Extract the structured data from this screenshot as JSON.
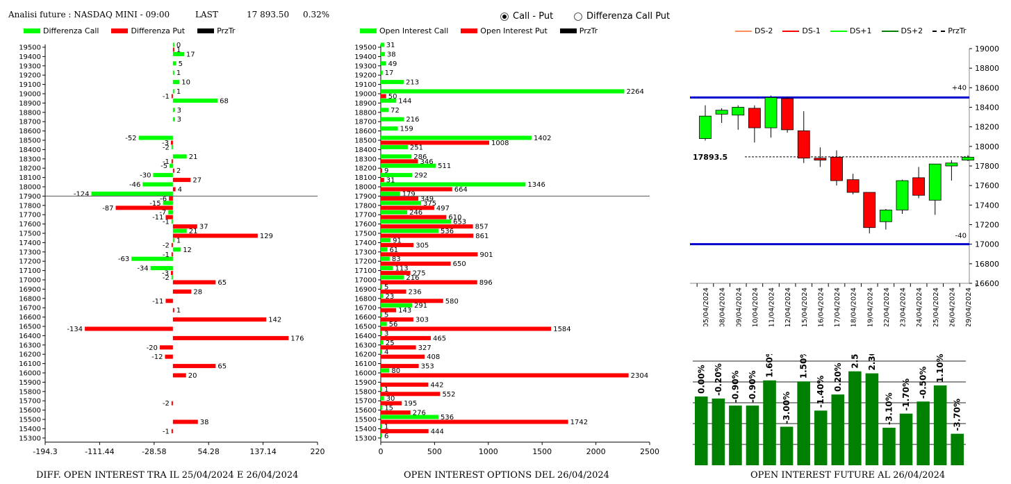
{
  "header": {
    "title": "Analisi future : NASDAQ MINI - 09:00",
    "last_label": "LAST",
    "last_value": "17 893.50",
    "change": "0.32%"
  },
  "radios": [
    {
      "label": "Call - Put",
      "selected": true
    },
    {
      "label": "Differenza Call Put",
      "selected": false
    }
  ],
  "legends": {
    "left": [
      {
        "label": "Differenza Call",
        "color": "#00ff00"
      },
      {
        "label": "Differenza Put",
        "color": "#ff0000"
      },
      {
        "label": "PrzTr",
        "color": "#000000"
      }
    ],
    "middle": [
      {
        "label": "Open Interest Call",
        "color": "#00ff00"
      },
      {
        "label": "Open Interest Put",
        "color": "#ff0000"
      },
      {
        "label": "PrzTr",
        "color": "#000000"
      }
    ],
    "right": [
      {
        "label": "DS-2",
        "color": "#ff8c5a",
        "style": "solid"
      },
      {
        "label": "DS-1",
        "color": "#ff0000",
        "style": "solid"
      },
      {
        "label": "DS+1",
        "color": "#00ff00",
        "style": "solid"
      },
      {
        "label": "DS+2",
        "color": "#008000",
        "style": "solid"
      },
      {
        "label": "PrzTr",
        "color": "#000000",
        "style": "dashed"
      }
    ]
  },
  "footers": {
    "left": "DIFF. OPEN INTEREST TRA IL 25/04/2024 E 26/04/2024",
    "middle": "OPEN INTEREST OPTIONS DEL 26/04/2024",
    "right": "OPEN INTEREST FUTURE AL 26/04/2024"
  },
  "chart_data": [
    {
      "type": "bar",
      "orientation": "horizontal",
      "strikes": [
        19500,
        19400,
        19300,
        19200,
        19100,
        19000,
        18900,
        18800,
        18700,
        18600,
        18500,
        18400,
        18300,
        18200,
        18100,
        18000,
        17900,
        17800,
        17700,
        17600,
        17500,
        17400,
        17300,
        17200,
        17100,
        17000,
        16900,
        16800,
        16700,
        16600,
        16500,
        16400,
        16300,
        16200,
        16100,
        16000,
        15900,
        15800,
        15700,
        15600,
        15500,
        15400,
        15300
      ],
      "series": [
        {
          "name": "Differenza Call",
          "color": "#00ff00",
          "values": [
            0,
            17,
            5,
            1,
            10,
            1,
            68,
            3,
            3,
            null,
            -52,
            -2,
            21,
            -5,
            -30,
            -46,
            -124,
            -15,
            -7,
            -1,
            21,
            1,
            12,
            -63,
            -34,
            -2,
            null,
            null,
            null,
            null,
            null,
            null,
            null,
            null,
            null,
            null,
            null,
            null,
            null,
            null,
            null,
            null,
            null
          ]
        },
        {
          "name": "Differenza Put",
          "color": "#ff0000",
          "values": [
            1,
            null,
            null,
            null,
            null,
            -1,
            null,
            null,
            null,
            null,
            -3,
            null,
            -1,
            2,
            27,
            4,
            -6,
            -87,
            -11,
            37,
            129,
            -2,
            -1,
            null,
            -3,
            65,
            28,
            -11,
            1,
            142,
            -134,
            176,
            -20,
            -12,
            65,
            20,
            null,
            null,
            -2,
            null,
            38,
            -1,
            null
          ]
        }
      ],
      "x_ticks": [
        "-194.3",
        "-111.44",
        "-28.58",
        "54.28",
        "137.14",
        "220"
      ],
      "xlim": [
        -194.3,
        220
      ],
      "price_line": 17900
    },
    {
      "type": "bar",
      "orientation": "horizontal",
      "strikes": [
        19500,
        19400,
        19300,
        19200,
        19100,
        19000,
        18900,
        18800,
        18700,
        18600,
        18500,
        18400,
        18300,
        18200,
        18100,
        18000,
        17900,
        17800,
        17700,
        17600,
        17500,
        17400,
        17300,
        17200,
        17100,
        17000,
        16900,
        16800,
        16700,
        16600,
        16500,
        16400,
        16300,
        16200,
        16100,
        16000,
        15900,
        15800,
        15700,
        15600,
        15500,
        15400,
        15300
      ],
      "series": [
        {
          "name": "Open Interest Call",
          "color": "#00ff00",
          "values": [
            31,
            38,
            49,
            17,
            213,
            2264,
            144,
            72,
            216,
            159,
            1402,
            251,
            286,
            511,
            292,
            1346,
            179,
            375,
            246,
            653,
            536,
            91,
            61,
            83,
            113,
            216,
            5,
            23,
            291,
            5,
            56,
            3,
            25,
            4,
            null,
            80,
            null,
            1,
            30,
            15,
            536,
            1,
            6
          ]
        },
        {
          "name": "Open Interest Put",
          "color": "#ff0000",
          "values": [
            null,
            null,
            null,
            null,
            null,
            50,
            null,
            null,
            null,
            null,
            1008,
            null,
            346,
            9,
            31,
            664,
            349,
            497,
            610,
            857,
            861,
            305,
            901,
            650,
            275,
            896,
            236,
            580,
            143,
            303,
            1584,
            465,
            327,
            408,
            353,
            2304,
            442,
            552,
            195,
            276,
            1742,
            444,
            null
          ]
        }
      ],
      "x_ticks": [
        "0",
        "500",
        "1000",
        "1500",
        "2000",
        "2500"
      ],
      "xlim": [
        0,
        2500
      ],
      "price_line": 17900
    },
    {
      "type": "candlestick",
      "dates": [
        "05/04/2024",
        "08/04/2024",
        "09/04/2024",
        "10/04/2024",
        "11/04/2024",
        "12/04/2024",
        "15/04/2024",
        "16/04/2024",
        "17/04/2024",
        "18/04/2024",
        "19/04/2024",
        "22/04/2024",
        "23/04/2024",
        "24/04/2024",
        "25/04/2024",
        "26/04/2024",
        "29/04/2024"
      ],
      "ohlc": [
        [
          18080,
          18420,
          18060,
          18310
        ],
        [
          18330,
          18390,
          18240,
          18370
        ],
        [
          18320,
          18420,
          18170,
          18400
        ],
        [
          18390,
          18420,
          18040,
          18190
        ],
        [
          18190,
          18520,
          18090,
          18500
        ],
        [
          18490,
          18510,
          18140,
          18170
        ],
        [
          18160,
          18360,
          17830,
          17880
        ],
        [
          17880,
          17990,
          17790,
          17860
        ],
        [
          17890,
          17960,
          17600,
          17650
        ],
        [
          17660,
          17720,
          17510,
          17530
        ],
        [
          17530,
          17530,
          17110,
          17170
        ],
        [
          17230,
          17360,
          17150,
          17350
        ],
        [
          17350,
          17660,
          17310,
          17650
        ],
        [
          17680,
          17790,
          17470,
          17500
        ],
        [
          17450,
          17820,
          17300,
          17820
        ],
        [
          17800,
          17860,
          17650,
          17830
        ],
        [
          17860,
          17910,
          17850,
          17890
        ]
      ],
      "y_ticks": [
        "19000",
        "18800",
        "18600",
        "18400",
        "18200",
        "18000",
        "17800",
        "17600",
        "17400",
        "17200",
        "17000",
        "16800",
        "16600"
      ],
      "ylim": [
        16600,
        19000
      ],
      "upper_band": 18500,
      "lower_band": 17000,
      "upper_label": "+40",
      "lower_label": "-40",
      "last_price": 17893.5,
      "last_price_label": "17893.5",
      "bullish_color": "#00ff00",
      "bearish_color": "#ff0000"
    },
    {
      "type": "bar",
      "values": [
        0.0,
        -0.2,
        -0.9,
        -0.9,
        1.6,
        -3.0,
        1.5,
        -1.4,
        0.2,
        2.5,
        2.3,
        -3.1,
        -1.7,
        -0.5,
        1.1,
        -3.7
      ],
      "labels": [
        "0.00%",
        "-0.20%",
        "-0.90%",
        "-0.90%",
        "1.60%",
        "-3.00%",
        "1.50%",
        "-1.40%",
        "0.20%",
        "2.50%",
        "2.30%",
        "-3.10%",
        "-1.70%",
        "-0.50%",
        "1.10%",
        "-3.70%"
      ],
      "bar_color": "#008000"
    }
  ]
}
